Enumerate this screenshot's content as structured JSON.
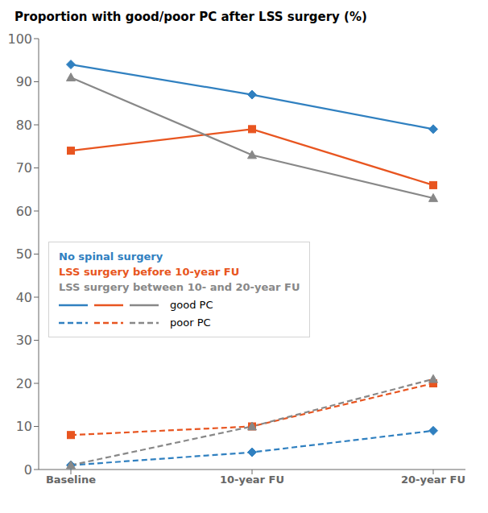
{
  "chart_data": {
    "type": "line",
    "title": "Proportion with good/poor PC after LSS surgery (%)",
    "categories": [
      "Baseline",
      "10-year FU",
      "20-year FU"
    ],
    "ylim": [
      0,
      100
    ],
    "yticks": [
      0,
      10,
      20,
      30,
      40,
      50,
      60,
      70,
      80,
      90,
      100
    ],
    "series": [
      {
        "name": "No spinal surgery",
        "line_name": "good PC",
        "color": "#3080C0",
        "line_style": "solid",
        "marker": "diamond",
        "values": [
          94,
          87,
          79
        ]
      },
      {
        "name": "LSS surgery before 10-year FU",
        "line_name": "good PC",
        "color": "#E85520",
        "line_style": "solid",
        "marker": "square",
        "values": [
          74,
          79,
          66
        ]
      },
      {
        "name": "LSS surgery between 10- and 20-year FU",
        "line_name": "good PC",
        "color": "#888888",
        "line_style": "solid",
        "marker": "triangle",
        "values": [
          91,
          73,
          63
        ]
      },
      {
        "name": "No spinal surgery",
        "line_name": "poor PC",
        "color": "#3080C0",
        "line_style": "dashed",
        "marker": "diamond",
        "values": [
          1,
          4,
          9
        ]
      },
      {
        "name": "LSS surgery before 10-year FU",
        "line_name": "poor PC",
        "color": "#E85520",
        "line_style": "dashed",
        "marker": "square",
        "values": [
          8,
          10,
          20
        ]
      },
      {
        "name": "LSS surgery between 10- and 20-year FU",
        "line_name": "poor PC",
        "color": "#888888",
        "line_style": "dashed",
        "marker": "triangle",
        "values": [
          1,
          10,
          21
        ]
      }
    ]
  }
}
